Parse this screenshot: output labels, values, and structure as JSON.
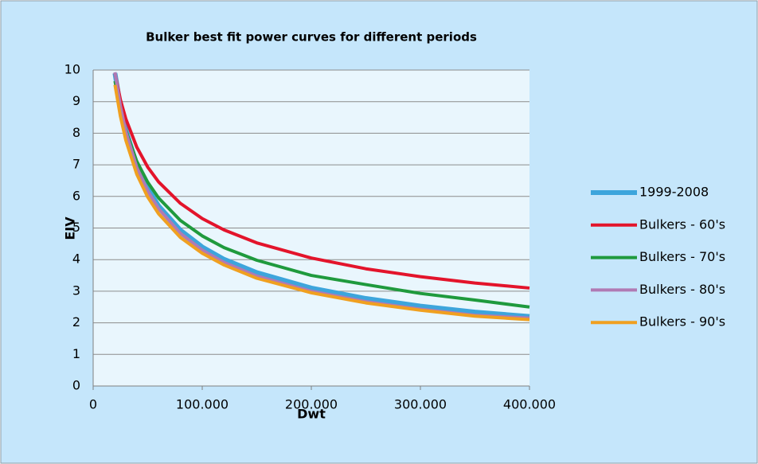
{
  "chart_data": {
    "type": "line",
    "title": "Bulker best fit power curves for different periods",
    "x_label": "Dwt",
    "y_label": "EIV",
    "x": [
      20000,
      25000,
      30000,
      40000,
      50000,
      60000,
      80000,
      100000,
      120000,
      150000,
      200000,
      250000,
      300000,
      350000,
      400000
    ],
    "series": [
      {
        "name": "1999-2008",
        "color": "#3da5dc",
        "width": 6,
        "values": [
          9.9,
          8.85,
          8.1,
          7.0,
          6.25,
          5.7,
          4.93,
          4.4,
          4.01,
          3.59,
          3.1,
          2.77,
          2.53,
          2.34,
          2.2
        ]
      },
      {
        "name": "Bulkers - 60's",
        "color": "#e3142b",
        "width": 4,
        "values": [
          9.9,
          9.06,
          8.45,
          7.56,
          6.93,
          6.46,
          5.78,
          5.3,
          4.94,
          4.53,
          4.05,
          3.71,
          3.46,
          3.26,
          3.1
        ]
      },
      {
        "name": "Bulkers - 70's",
        "color": "#1f9a3d",
        "width": 4,
        "values": [
          9.65,
          8.75,
          8.08,
          7.11,
          6.45,
          5.95,
          5.24,
          4.75,
          4.38,
          3.98,
          3.5,
          3.21,
          2.93,
          2.72,
          2.5
        ]
      },
      {
        "name": "Bulkers - 80's",
        "color": "#b07ab4",
        "width": 4,
        "values": [
          9.93,
          8.86,
          8.05,
          6.92,
          6.17,
          5.61,
          4.83,
          4.3,
          3.91,
          3.48,
          3.0,
          2.67,
          2.43,
          2.24,
          2.15
        ]
      },
      {
        "name": "Bulkers - 90's",
        "color": "#f0a020",
        "width": 4,
        "values": [
          9.53,
          8.53,
          7.77,
          6.7,
          5.98,
          5.45,
          4.7,
          4.2,
          3.83,
          3.41,
          2.95,
          2.63,
          2.4,
          2.21,
          2.1
        ]
      }
    ],
    "xlim": [
      0,
      400000
    ],
    "xticks": [
      0,
      {
        "value": 100000,
        "label": "100.000"
      },
      {
        "value": 200000,
        "label": "200.000"
      },
      {
        "value": 300000,
        "label": "300.000"
      },
      {
        "value": 400000,
        "label": "400.000"
      }
    ],
    "ylim": [
      0,
      10
    ],
    "yticks": [
      0,
      1,
      2,
      3,
      4,
      5,
      6,
      7,
      8,
      9,
      10
    ],
    "grid": true,
    "legend": "right"
  }
}
